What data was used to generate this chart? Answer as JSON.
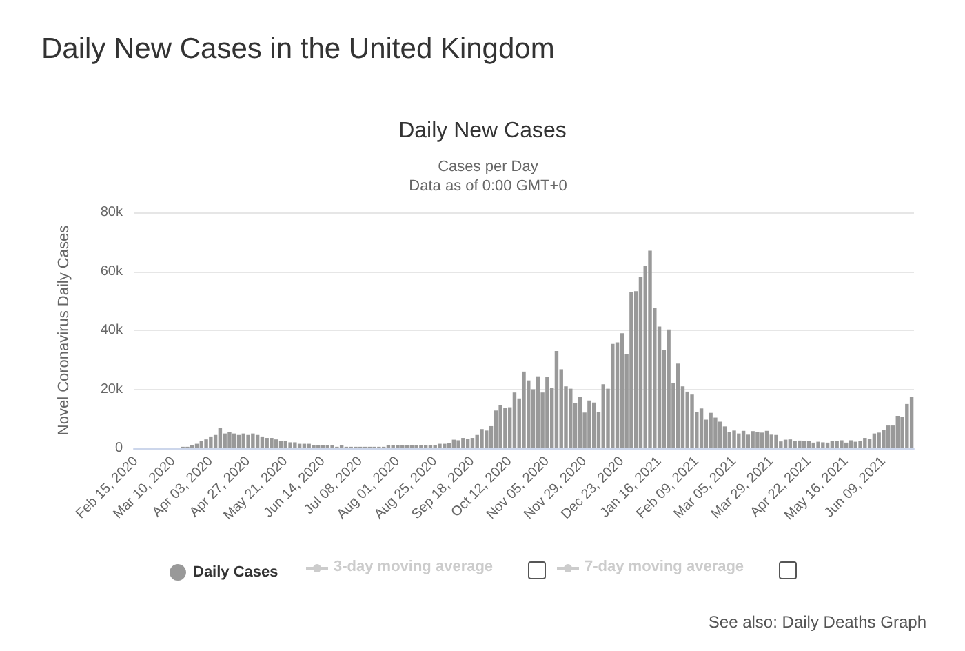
{
  "chart_data": {
    "type": "bar",
    "title": "Daily New Cases in the United Kingdom",
    "subtitle": "Daily New Cases",
    "annotations": [
      "Cases per Day",
      "Data as of 0:00 GMT+0",
      "3-day moving average",
      "7-day moving average",
      "See also: Daily Deaths Graph"
    ],
    "ylabel": "Novel Coronavirus Daily Cases",
    "categories": [
      "Feb 15, 2020",
      null,
      null,
      null,
      null,
      null,
      null,
      null,
      "Mar 10, 2020",
      null,
      null,
      null,
      null,
      null,
      null,
      null,
      "Apr 03, 2020",
      null,
      null,
      null,
      null,
      null,
      null,
      null,
      "Apr 27, 2020",
      null,
      null,
      null,
      null,
      null,
      null,
      null,
      "May 21, 2020",
      null,
      null,
      null,
      null,
      null,
      null,
      null,
      "Jun 14, 2020",
      null,
      null,
      null,
      null,
      null,
      null,
      null,
      "Jul 08, 2020",
      null,
      null,
      null,
      null,
      null,
      null,
      null,
      "Aug 01, 2020",
      null,
      null,
      null,
      null,
      null,
      null,
      null,
      "Aug 25, 2020",
      null,
      null,
      null,
      null,
      null,
      null,
      null,
      "Sep 18, 2020",
      null,
      null,
      null,
      null,
      null,
      null,
      null,
      "Oct 12, 2020",
      null,
      null,
      null,
      null,
      null,
      null,
      null,
      "Nov 05, 2020",
      null,
      null,
      null,
      null,
      null,
      null,
      null,
      "Nov 29, 2020",
      null,
      null,
      null,
      null,
      null,
      null,
      null,
      "Dec 23, 2020",
      null,
      null,
      null,
      null,
      null,
      null,
      null,
      "Jan 16, 2021",
      null,
      null,
      null,
      null,
      null,
      null,
      null,
      "Feb 09, 2021",
      null,
      null,
      null,
      null,
      null,
      null,
      null,
      "Mar 05, 2021",
      null,
      null,
      null,
      null,
      null,
      null,
      null,
      "Mar 29, 2021",
      null,
      null,
      null,
      null,
      null,
      null,
      null,
      "Apr 22, 2021",
      null,
      null,
      null,
      null,
      null,
      null,
      null,
      "May 16, 2021",
      null,
      null,
      null,
      null,
      null,
      null,
      null,
      "Jun 09, 2021",
      null,
      null,
      null,
      null,
      null,
      null
    ],
    "series": [
      {
        "name": "Daily Cases",
        "color": "#999999",
        "values": [
          0,
          0,
          0,
          0,
          0,
          0,
          0,
          0,
          0,
          0,
          500,
          500,
          1000,
          1500,
          2500,
          3000,
          4000,
          4500,
          7000,
          5000,
          5500,
          5000,
          4500,
          5000,
          4500,
          5000,
          4500,
          4000,
          3500,
          3500,
          3000,
          2500,
          2500,
          2000,
          2000,
          1500,
          1500,
          1500,
          1000,
          1000,
          1000,
          1000,
          1000,
          500,
          1000,
          500,
          500,
          500,
          500,
          500,
          500,
          500,
          500,
          500,
          1000,
          1000,
          1000,
          1000,
          1000,
          1000,
          1000,
          1000,
          1000,
          1000,
          1000,
          1500,
          1500,
          1700,
          2900,
          2700,
          3500,
          3200,
          3500,
          4500,
          6500,
          6000,
          7500,
          12800,
          14500,
          13800,
          13900,
          18900,
          16900,
          26000,
          23000,
          20000,
          24400,
          18900,
          24100,
          20500,
          33000,
          26800,
          21000,
          20200,
          15400,
          17500,
          12100,
          16200,
          15500,
          12300,
          21700,
          20200,
          35400,
          35900,
          39000,
          32000,
          53100,
          53300,
          58000,
          62000,
          67000,
          47500,
          41300,
          33300,
          40300,
          22200,
          28700,
          21000,
          19200,
          18200,
          12400,
          13500,
          9700,
          12000,
          10400,
          9000,
          7400,
          5400,
          6000,
          5000,
          5900,
          4600,
          5800,
          5600,
          5300,
          5900,
          4600,
          4500,
          2300,
          2900,
          3000,
          2500,
          2600,
          2500,
          2400,
          1900,
          2200,
          2000,
          1900,
          2500,
          2400,
          2700,
          1900,
          2700,
          2200,
          2400,
          3500,
          3200,
          5000,
          5300,
          6200,
          7700,
          7700,
          11000,
          10600,
          15000,
          17500
        ]
      }
    ],
    "ylim": [
      0,
      80000
    ],
    "yticks": [
      0,
      {
        "value": 20000,
        "label": "20k"
      },
      {
        "value": 40000,
        "label": "40k"
      },
      {
        "value": 60000,
        "label": "60k"
      },
      {
        "value": 80000,
        "label": "80k"
      }
    ],
    "grid": "y",
    "legend": "bottom"
  }
}
